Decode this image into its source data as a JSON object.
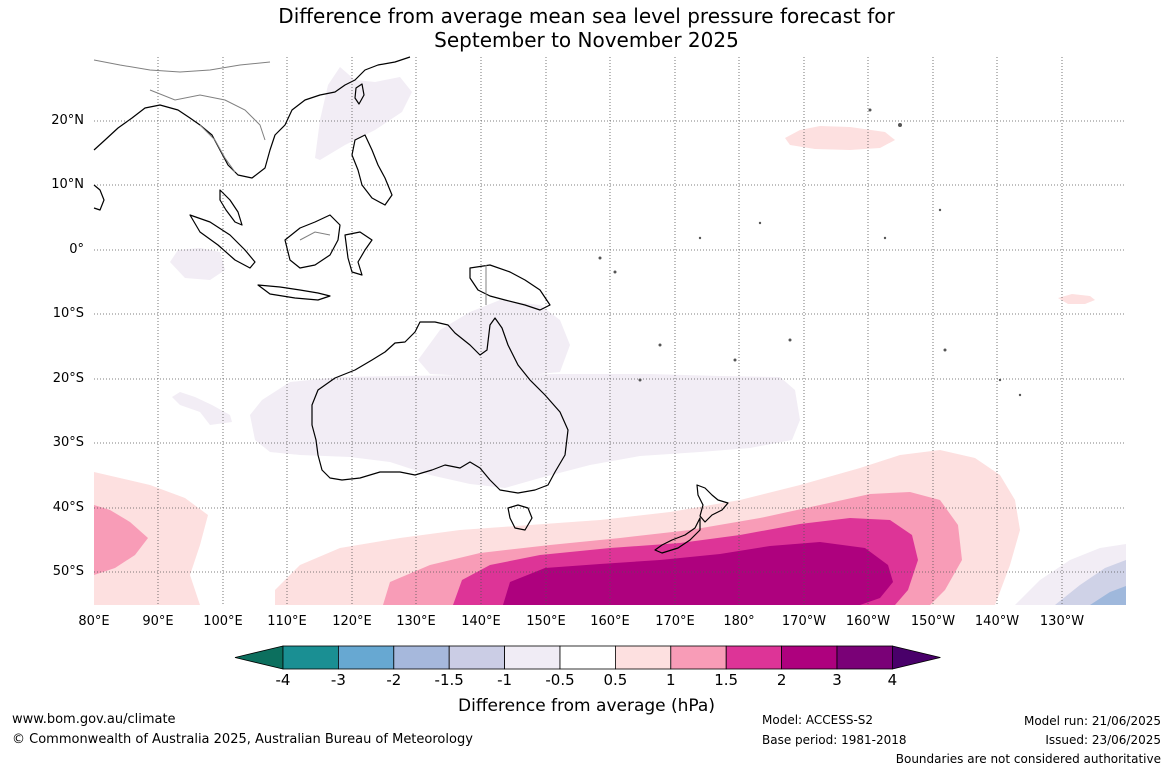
{
  "title": {
    "line1": "Difference from average mean sea level pressure forecast for",
    "line2": "September to November 2025"
  },
  "map": {
    "lat_labels": [
      "20°N",
      "10°N",
      "0°",
      "10°S",
      "20°S",
      "30°S",
      "40°S",
      "50°S"
    ],
    "lon_labels": [
      "80°E",
      "90°E",
      "100°E",
      "110°E",
      "120°E",
      "130°E",
      "140°E",
      "150°E",
      "160°E",
      "170°E",
      "180°",
      "170°W",
      "160°W",
      "150°W",
      "140°W",
      "130°W"
    ],
    "extent": {
      "lon": [
        80,
        239
      ],
      "lat": [
        -55,
        30
      ]
    },
    "gridlines": true,
    "coastline_color": "#000000",
    "border_color": "#808080"
  },
  "colorbar": {
    "ticks": [
      "-4",
      "-3",
      "-2",
      "-1.5",
      "-1",
      "-0.5",
      "0.5",
      "1",
      "1.5",
      "2",
      "3",
      "4"
    ],
    "colors": [
      "#0c6f5e",
      "#1a8f93",
      "#67a8d2",
      "#a6b8dc",
      "#cbcde5",
      "#f0ecf5",
      "#ffffff",
      "#fde0e0",
      "#f89cb7",
      "#dd3497",
      "#ae017e",
      "#7a0177",
      "#49006a"
    ],
    "label": "Difference from average (hPa)"
  },
  "footer": {
    "website": "www.bom.gov.au/climate",
    "copyright": "© Commonwealth of Australia 2025, Australian Bureau of Meteorology",
    "model": "Model: ACCESS-S2",
    "base_period": "Base period: 1981-2018",
    "model_run": "Model run: 21/06/2025",
    "issued": "Issued: 23/06/2025",
    "disclaimer": "Boundaries are not considered authoritative"
  }
}
